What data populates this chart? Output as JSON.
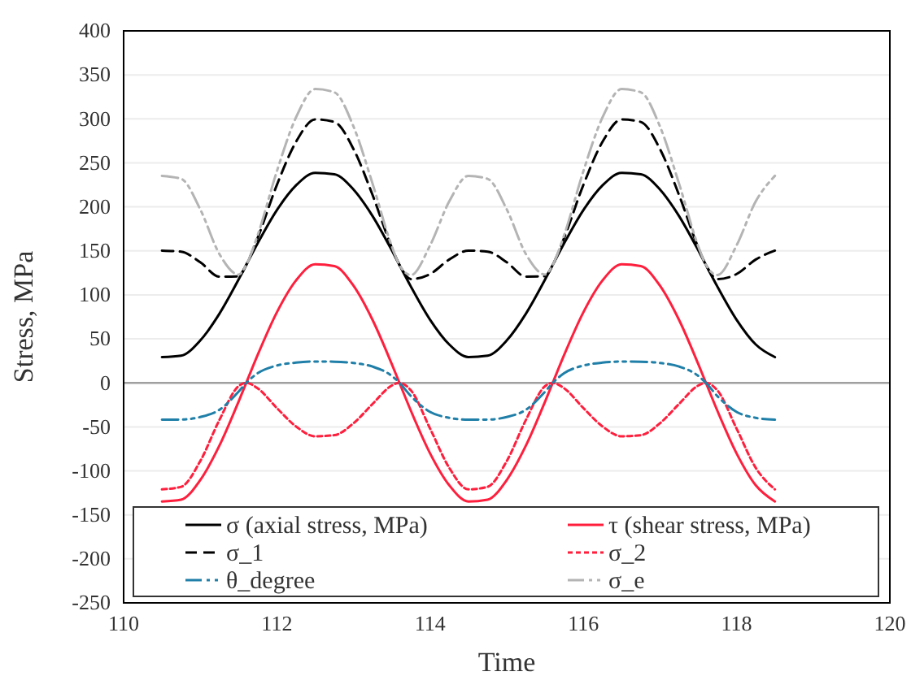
{
  "chart_data": {
    "type": "line",
    "xlabel": "Time",
    "ylabel": "Stress, MPa",
    "xlim": [
      110,
      120
    ],
    "xticks": [
      110,
      112,
      114,
      116,
      118,
      120
    ],
    "ylim": [
      -250,
      400
    ],
    "yticks": [
      -250,
      -200,
      -150,
      -100,
      -50,
      0,
      50,
      100,
      150,
      200,
      250,
      300,
      350,
      400
    ],
    "grid": "y",
    "legend": "bottom",
    "marker": "none",
    "ref_lines": [
      {
        "axis": "y",
        "value": 0,
        "color": "#a0a0a0"
      }
    ],
    "x": [
      110.5,
      110.75,
      111,
      111.25,
      111.5,
      111.6,
      111.75,
      112,
      112.25,
      112.5,
      112.75,
      113,
      113.25,
      113.5,
      113.6,
      113.75,
      114,
      114.25,
      114.5,
      114.75,
      115,
      115.25,
      115.5,
      115.6,
      115.75,
      116,
      116.25,
      116.5,
      116.75,
      117,
      117.25,
      117.5,
      117.6,
      117.75,
      118,
      118.25,
      118.5
    ],
    "series": [
      {
        "name": "σ (axial stress, MPa)",
        "color": "#000000",
        "line_style": "solid",
        "values": [
          29.3,
          30.9,
          48.2,
          78.6,
          117.4,
          134,
          158.7,
          196.3,
          224.4,
          238.7,
          237.1,
          219.8,
          189.4,
          150.6,
          134,
          109.3,
          71.7,
          43.6,
          29.3,
          30.9,
          48.2,
          78.6,
          117.4,
          134,
          158.7,
          196.3,
          224.4,
          238.7,
          237.1,
          219.8,
          189.4,
          150.6,
          134,
          109.3,
          71.7,
          43.6,
          29.3
        ]
      },
      {
        "name": "τ (shear stress, MPa)",
        "color": "#ff1f3d",
        "line_style": "solid",
        "values": [
          -134.8,
          -132.7,
          -110.4,
          -71.3,
          -21.3,
          0,
          31.9,
          80.2,
          116.4,
          134.8,
          132.7,
          110.4,
          71.3,
          21.3,
          0,
          -31.9,
          -80.2,
          -116.4,
          -134.8,
          -132.7,
          -110.4,
          -71.3,
          -21.3,
          0,
          31.9,
          80.2,
          116.4,
          134.8,
          132.7,
          110.4,
          71.3,
          21.3,
          0,
          -31.9,
          -80.2,
          -116.4,
          -134.8
        ]
      },
      {
        "name": "σ_1",
        "color": "#000000",
        "line_style": "dashed",
        "values": [
          150.3,
          149.1,
          137.1,
          120.7,
          121.1,
          134,
          164.9,
          224.9,
          273.9,
          299.4,
          296.5,
          265.7,
          213.2,
          153.6,
          134,
          117.9,
          123.7,
          140.2,
          150.3,
          149.1,
          137.1,
          120.7,
          121.1,
          134,
          164.9,
          224.9,
          273.9,
          299.4,
          296.5,
          265.7,
          213.2,
          153.6,
          134,
          117.9,
          123.7,
          140.2,
          150.3
        ]
      },
      {
        "name": "σ_2",
        "color": "#ff1f3d",
        "line_style": "dotted",
        "values": [
          -121.0,
          -118.1,
          -88.9,
          -42.1,
          -3.7,
          0,
          -6.2,
          -28.6,
          -49.5,
          -60.7,
          -59.4,
          -45.9,
          -23.8,
          -3.0,
          0,
          -8.6,
          -52.0,
          -96.6,
          -121.0,
          -118.1,
          -88.9,
          -42.1,
          -3.7,
          0,
          -6.2,
          -28.6,
          -49.5,
          -60.7,
          -59.4,
          -45.9,
          -23.8,
          -3.0,
          0,
          -8.6,
          -52.0,
          -96.6,
          -121.0
        ]
      },
      {
        "name": "θ_degree",
        "color": "#1f7fa8",
        "line_style": "dashdot",
        "values": [
          -41.9,
          -41.7,
          -38.8,
          -30.6,
          -10.0,
          0,
          11.0,
          19.7,
          23.0,
          24.3,
          24.1,
          22.6,
          18.5,
          7.9,
          0,
          -15.1,
          -33.0,
          -39.7,
          -41.9,
          -41.7,
          -38.8,
          -30.6,
          -10.0,
          0,
          11.0,
          19.7,
          23.0,
          24.3,
          24.1,
          22.6,
          18.5,
          7.9,
          0,
          -15.1,
          -33.0,
          -39.7,
          -41.9
        ]
      },
      {
        "name": "σ_e",
        "color": "#b4b4b4",
        "line_style": "dashdot",
        "values": [
          235.3,
          231.9,
          197.2,
          146.4,
          123.1,
          134,
          168.0,
          240.5,
          301.7,
          333.9,
          330.2,
          291.3,
          226.1,
          155.1,
          134,
          122.5,
          156.3,
          206.3,
          235.3,
          231.9,
          197.2,
          146.4,
          123.1,
          134,
          168.0,
          240.5,
          301.7,
          333.9,
          330.2,
          291.3,
          226.1,
          155.1,
          134,
          122.5,
          156.3,
          206.3,
          235.3
        ]
      }
    ]
  }
}
